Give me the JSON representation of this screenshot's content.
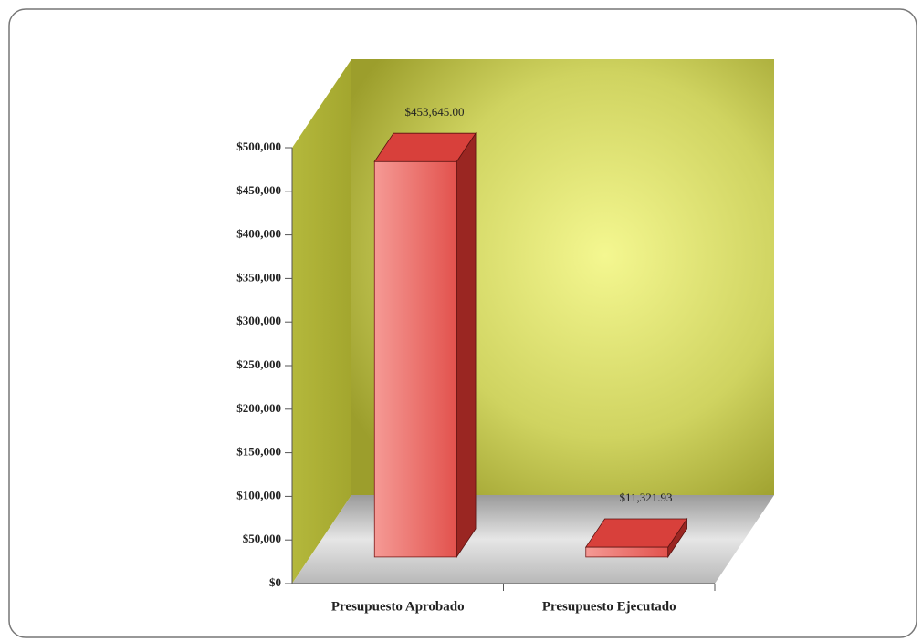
{
  "chart_data": {
    "type": "bar3d",
    "categories": [
      "Presupuesto Aprobado",
      "Presupuesto Ejecutado"
    ],
    "values": [
      453645,
      11321.93
    ],
    "value_labels": [
      "$453,645.00",
      "$11,321.93"
    ],
    "color": "#e8524f",
    "ylim": [
      0,
      500000
    ],
    "yticks": [
      {
        "value": 0,
        "label": "$0"
      },
      {
        "value": 50000,
        "label": "$50,000"
      },
      {
        "value": 100000,
        "label": "$100,000"
      },
      {
        "value": 150000,
        "label": "$150,000"
      },
      {
        "value": 200000,
        "label": "$200,000"
      },
      {
        "value": 250000,
        "label": "$250,000"
      },
      {
        "value": 300000,
        "label": "$300,000"
      },
      {
        "value": 350000,
        "label": "$350,000"
      },
      {
        "value": 400000,
        "label": "$400,000"
      },
      {
        "value": 450000,
        "label": "$450,000"
      },
      {
        "value": 500000,
        "label": "$500,000"
      }
    ]
  }
}
